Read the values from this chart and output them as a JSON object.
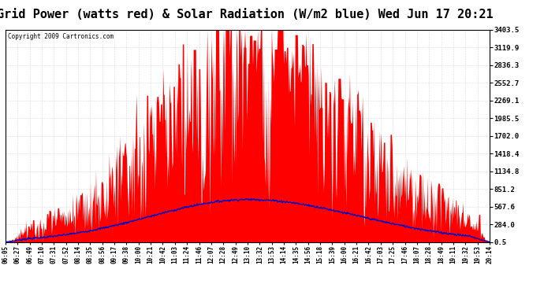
{
  "title": "Grid Power (watts red) & Solar Radiation (W/m2 blue) Wed Jun 17 20:21",
  "copyright": "Copyright 2009 Cartronics.com",
  "y_ticks": [
    0.5,
    284.0,
    567.6,
    851.2,
    1134.8,
    1418.4,
    1702.0,
    1985.5,
    2269.1,
    2552.7,
    2836.3,
    3119.9,
    3403.5
  ],
  "y_min": 0.5,
  "y_max": 3403.5,
  "x_labels": [
    "06:05",
    "06:27",
    "06:49",
    "07:10",
    "07:31",
    "07:52",
    "08:14",
    "08:35",
    "08:56",
    "09:17",
    "09:38",
    "10:00",
    "10:21",
    "10:42",
    "11:03",
    "11:24",
    "11:46",
    "12:07",
    "12:28",
    "12:49",
    "13:10",
    "13:32",
    "13:53",
    "14:14",
    "14:35",
    "14:56",
    "15:18",
    "15:39",
    "16:00",
    "16:21",
    "16:42",
    "17:03",
    "17:25",
    "17:46",
    "18:07",
    "18:28",
    "18:49",
    "19:11",
    "19:32",
    "19:53",
    "20:14"
  ],
  "bg_color": "#ffffff",
  "plot_bg": "#ffffff",
  "grid_color": "#bbbbbb",
  "title_fontsize": 11,
  "red_color": "#ff0000",
  "blue_color": "#0000cc"
}
